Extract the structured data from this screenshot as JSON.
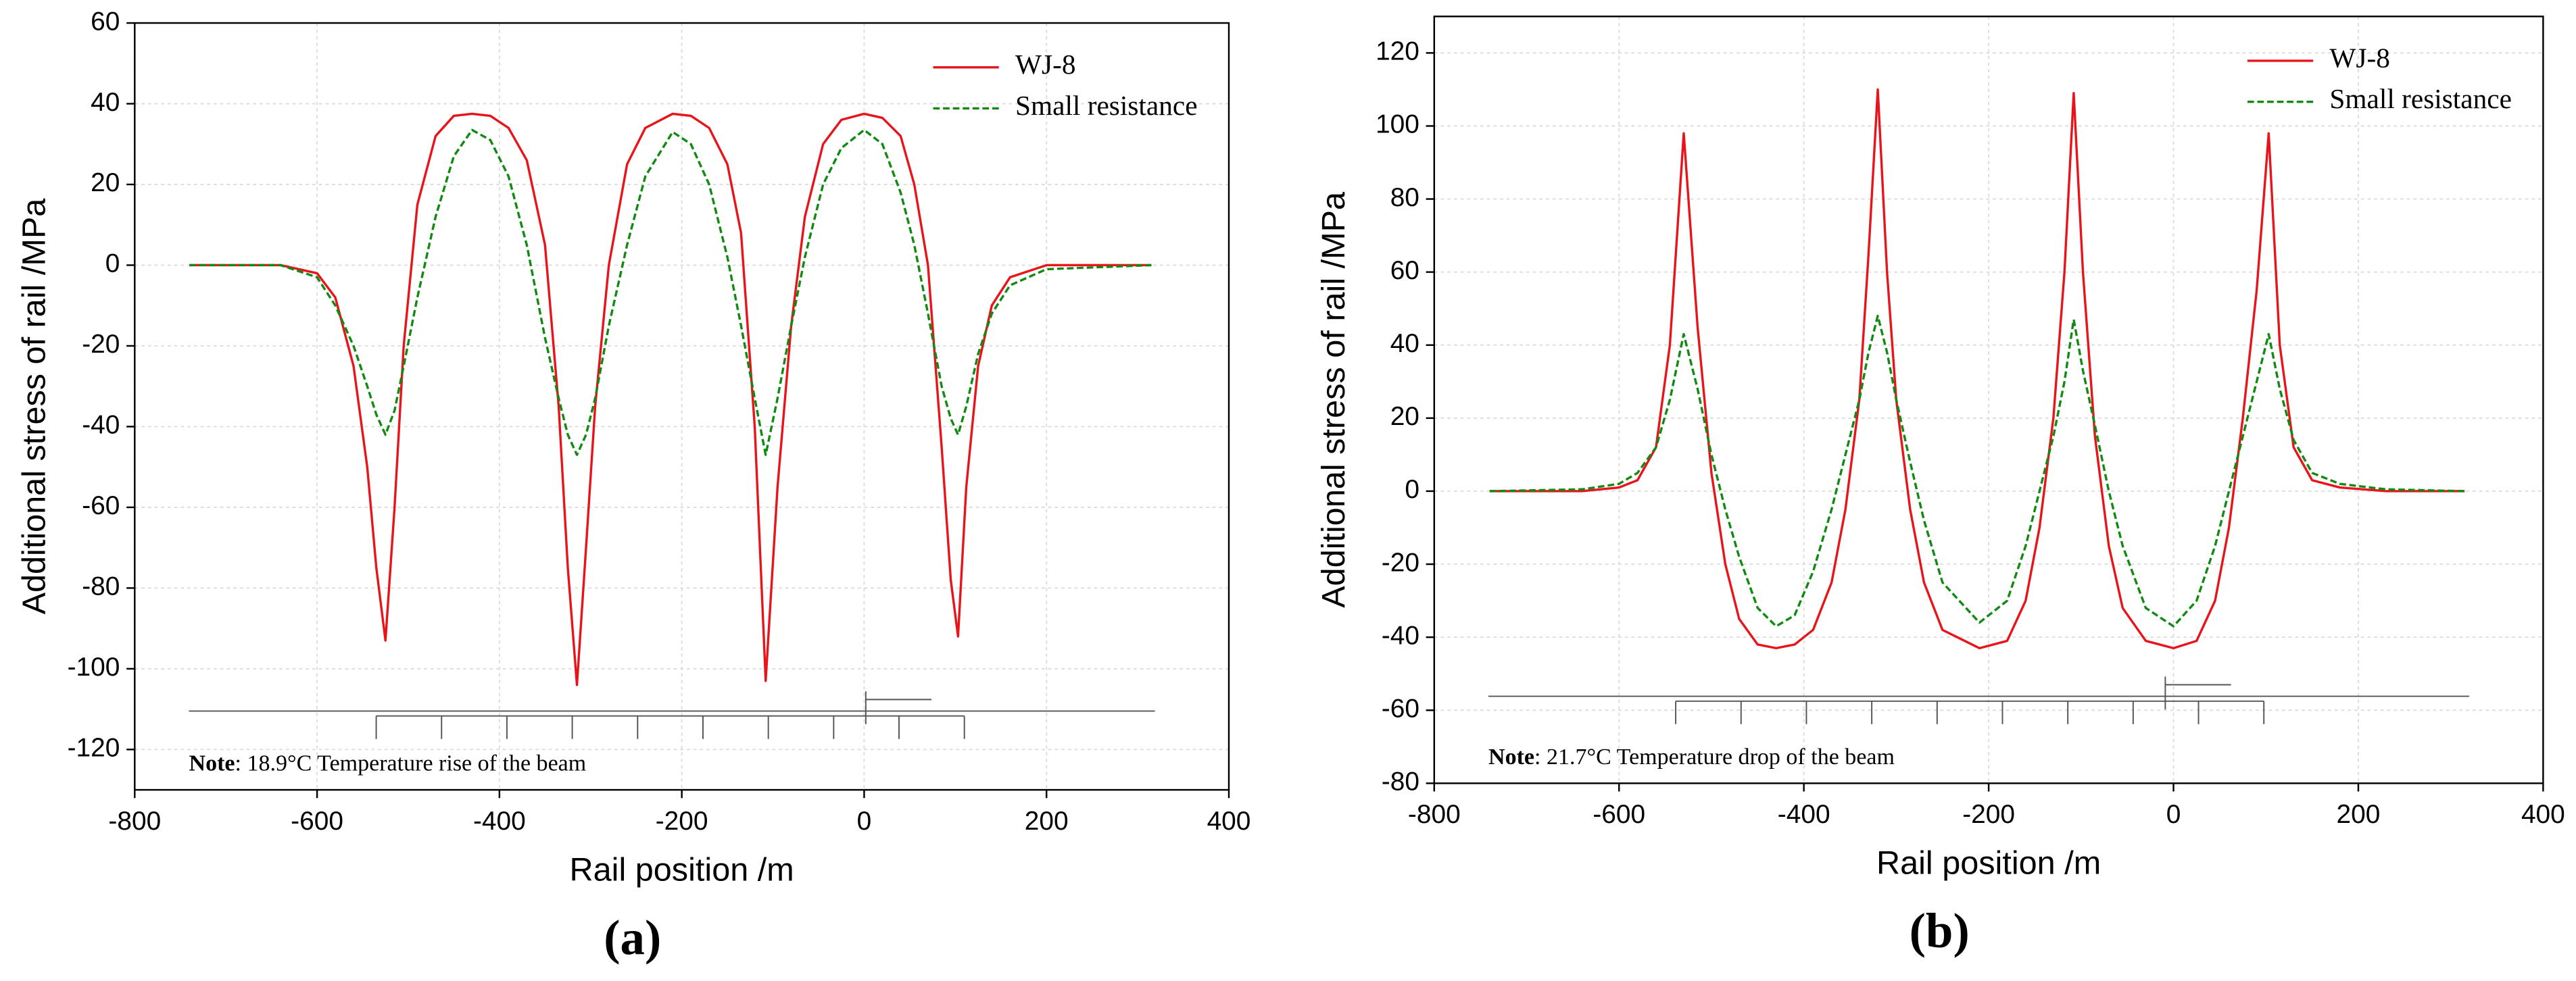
{
  "chart_data": [
    {
      "type": "line",
      "panel_label": "(a)",
      "note_label": "Note",
      "note_text": ": 18.9°C Temperature rise of the beam",
      "xlabel": "Rail position /m",
      "ylabel": "Additional stress of rail /MPa",
      "xlim": [
        -800,
        400
      ],
      "xticks": [
        -800,
        -600,
        -400,
        -200,
        0,
        200,
        400
      ],
      "ylim": [
        -130,
        60
      ],
      "yticks": [
        -120,
        -100,
        -80,
        -60,
        -40,
        -20,
        0,
        20,
        40,
        60
      ],
      "grid": true,
      "legend": "upper right",
      "x": [
        -740,
        -640,
        -600,
        -580,
        -560,
        -545,
        -535,
        -525,
        -515,
        -505,
        -490,
        -470,
        -450,
        -430,
        -410,
        -390,
        -370,
        -350,
        -335,
        -325,
        -315,
        -305,
        -295,
        -280,
        -260,
        -240,
        -210,
        -190,
        -170,
        -150,
        -135,
        -120,
        -108,
        -95,
        -80,
        -65,
        -45,
        -25,
        0,
        20,
        40,
        55,
        70,
        85,
        95,
        103,
        112,
        125,
        140,
        160,
        200,
        315
      ],
      "series": [
        {
          "name": "WJ-8",
          "color": "#e8141a",
          "dash": false,
          "values": [
            0,
            0,
            -2,
            -8,
            -25,
            -50,
            -75,
            -93,
            -60,
            -20,
            15,
            32,
            37,
            37.5,
            37,
            34,
            26,
            5,
            -35,
            -75,
            -104,
            -70,
            -35,
            0,
            25,
            34,
            37.5,
            37,
            34,
            25,
            8,
            -40,
            -103,
            -55,
            -15,
            12,
            30,
            36,
            37.5,
            36.5,
            32,
            20,
            0,
            -45,
            -78,
            -92,
            -55,
            -25,
            -10,
            -3,
            0,
            0
          ]
        },
        {
          "name": "Small resistance",
          "color": "#118a11",
          "dash": true,
          "values": [
            0,
            0,
            -3,
            -10,
            -20,
            -30,
            -37,
            -42,
            -36,
            -25,
            -8,
            12,
            27,
            33.5,
            31,
            22,
            5,
            -18,
            -33,
            -42,
            -47,
            -42,
            -33,
            -15,
            5,
            22,
            33,
            30,
            20,
            2,
            -15,
            -33,
            -47,
            -33,
            -15,
            2,
            20,
            29,
            33.5,
            30,
            18,
            5,
            -12,
            -30,
            -38,
            -42,
            -35,
            -22,
            -12,
            -5,
            -1,
            0
          ]
        }
      ]
    },
    {
      "type": "line",
      "panel_label": "(b)",
      "note_label": "Note",
      "note_text": ": 21.7°C Temperature drop of the beam",
      "xlabel": "Rail position /m",
      "ylabel": "Additional stress of rail /MPa",
      "xlim": [
        -800,
        400
      ],
      "xticks": [
        -800,
        -600,
        -400,
        -200,
        0,
        200,
        400
      ],
      "ylim": [
        -80,
        130
      ],
      "yticks": [
        -80,
        -60,
        -40,
        -20,
        0,
        20,
        40,
        60,
        80,
        100,
        120
      ],
      "grid": true,
      "legend": "upper right",
      "x": [
        -740,
        -640,
        -600,
        -580,
        -560,
        -545,
        -530,
        -515,
        -500,
        -485,
        -470,
        -450,
        -430,
        -410,
        -390,
        -370,
        -355,
        -340,
        -330,
        -320,
        -310,
        -300,
        -285,
        -270,
        -250,
        -210,
        -180,
        -160,
        -145,
        -130,
        -118,
        -108,
        -98,
        -85,
        -70,
        -55,
        -30,
        0,
        25,
        45,
        60,
        75,
        90,
        103,
        115,
        130,
        150,
        180,
        230,
        315
      ],
      "series": [
        {
          "name": "WJ-8",
          "color": "#e8141a",
          "dash": false,
          "values": [
            0,
            0,
            1,
            3,
            12,
            40,
            98,
            45,
            5,
            -20,
            -35,
            -42,
            -43,
            -42,
            -38,
            -25,
            -5,
            25,
            65,
            110,
            60,
            25,
            -5,
            -25,
            -38,
            -43,
            -41,
            -30,
            -10,
            20,
            60,
            109,
            60,
            15,
            -15,
            -32,
            -41,
            -43,
            -41,
            -30,
            -10,
            20,
            55,
            98,
            40,
            12,
            3,
            1,
            0,
            0
          ]
        },
        {
          "name": "Small resistance",
          "color": "#118a11",
          "dash": true,
          "values": [
            0,
            0.5,
            2,
            5,
            12,
            25,
            43,
            28,
            10,
            -5,
            -18,
            -32,
            -37,
            -34,
            -22,
            -5,
            10,
            25,
            38,
            48,
            38,
            25,
            8,
            -8,
            -25,
            -36,
            -30,
            -15,
            0,
            15,
            30,
            47,
            33,
            18,
            0,
            -15,
            -32,
            -37,
            -30,
            -15,
            0,
            15,
            30,
            43,
            28,
            14,
            5,
            2,
            0.5,
            0
          ]
        }
      ]
    }
  ]
}
